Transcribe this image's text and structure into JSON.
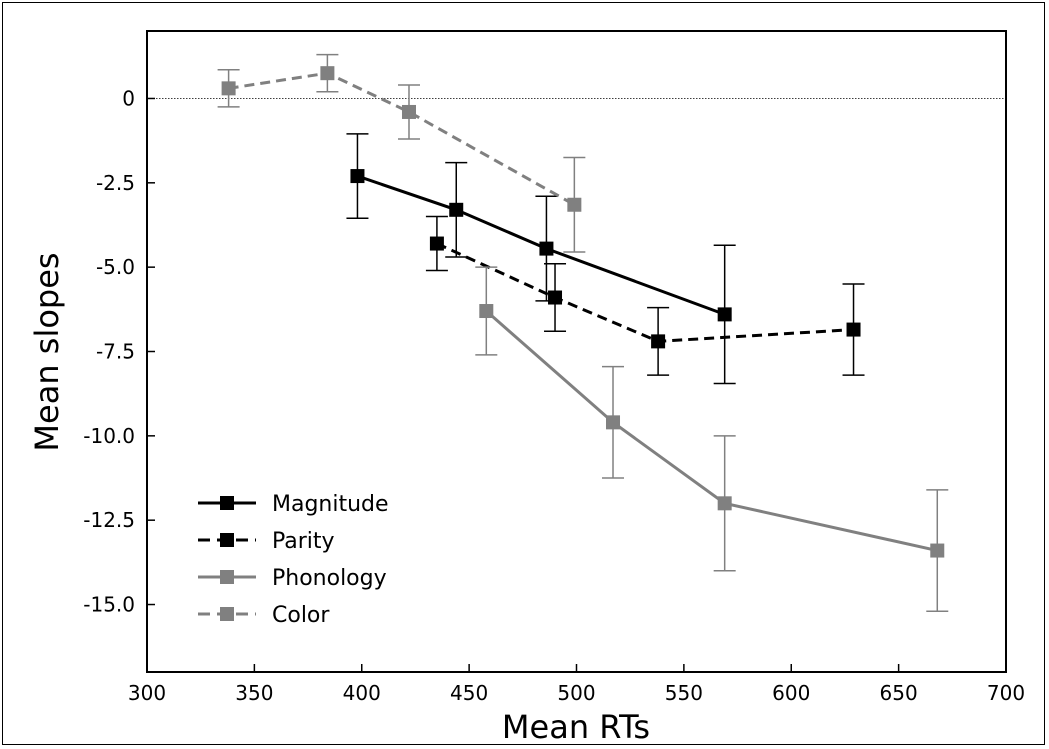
{
  "chart_data": {
    "type": "line",
    "xlabel": "Mean RTs",
    "ylabel": "Mean slopes",
    "xlim": [
      300,
      700
    ],
    "ylim": [
      -17,
      2
    ],
    "xticks": [
      300,
      350,
      400,
      450,
      500,
      550,
      600,
      650,
      700
    ],
    "yticks": [
      0,
      -2.5,
      -5.0,
      -7.5,
      -10.0,
      -12.5,
      -15.0
    ],
    "ytick_labels": [
      "0",
      "-2.5",
      "-5.0",
      "-7.5",
      "-10.0",
      "-12.5",
      "-15.0"
    ],
    "zero_line": true,
    "grid": false,
    "legend_position": "lower-left",
    "series": [
      {
        "name": "Magnitude",
        "color": "#000000",
        "linestyle": "solid",
        "x": [
          398,
          444,
          486,
          569
        ],
        "y": [
          -2.3,
          -3.3,
          -4.45,
          -6.4
        ],
        "err": [
          1.25,
          1.4,
          1.55,
          2.05
        ]
      },
      {
        "name": "Parity",
        "color": "#000000",
        "linestyle": "dashed",
        "x": [
          435,
          490,
          538,
          629
        ],
        "y": [
          -4.3,
          -5.9,
          -7.2,
          -6.85
        ],
        "err": [
          0.8,
          1.0,
          1.0,
          1.35
        ]
      },
      {
        "name": "Phonology",
        "color": "#808080",
        "linestyle": "solid",
        "x": [
          458,
          517,
          569,
          668
        ],
        "y": [
          -6.3,
          -9.6,
          -12.0,
          -13.4
        ],
        "err": [
          1.3,
          1.65,
          2.0,
          1.8
        ]
      },
      {
        "name": "Color",
        "color": "#808080",
        "linestyle": "dashed",
        "x": [
          338,
          384,
          422,
          499
        ],
        "y": [
          0.3,
          0.75,
          -0.4,
          -3.15
        ],
        "err": [
          0.55,
          0.55,
          0.8,
          1.4
        ]
      }
    ]
  }
}
